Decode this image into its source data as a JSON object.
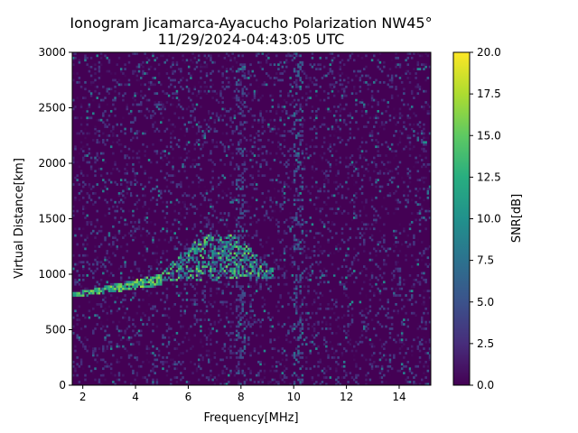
{
  "chart_data": {
    "type": "heatmap",
    "title": "Ionogram Jicamarca-Ayacucho Polarization NW45°",
    "subtitle": "11/29/2024-04:43:05 UTC",
    "xlabel": "Frequency[MHz]",
    "ylabel": "Virtual Distance[km]",
    "colorbar_label": "SNR[dB]",
    "colormap": "viridis",
    "xlim": [
      1.6,
      15.2
    ],
    "ylim": [
      0,
      3000
    ],
    "clim": [
      0,
      20
    ],
    "x_ticks": [
      2,
      4,
      6,
      8,
      10,
      12,
      14
    ],
    "y_ticks": [
      0,
      500,
      1000,
      1500,
      2000,
      2500,
      3000
    ],
    "colorbar_ticks": [
      0.0,
      2.5,
      5.0,
      7.5,
      10.0,
      12.5,
      15.0,
      17.5,
      20.0
    ],
    "grid": false,
    "features": [
      {
        "kind": "trace",
        "freq_start": 1.6,
        "freq_end": 5.0,
        "distance_start": 810,
        "distance_end": 950,
        "snr": 17
      },
      {
        "kind": "cluster",
        "freq_start": 5.0,
        "freq_end": 9.2,
        "distance_start": 930,
        "distance_end": 1350,
        "snr": 16
      },
      {
        "kind": "vertical-interference",
        "freq": 10.2,
        "snr": 5
      },
      {
        "kind": "vertical-interference",
        "freq": 8.0,
        "snr": 4
      }
    ]
  }
}
